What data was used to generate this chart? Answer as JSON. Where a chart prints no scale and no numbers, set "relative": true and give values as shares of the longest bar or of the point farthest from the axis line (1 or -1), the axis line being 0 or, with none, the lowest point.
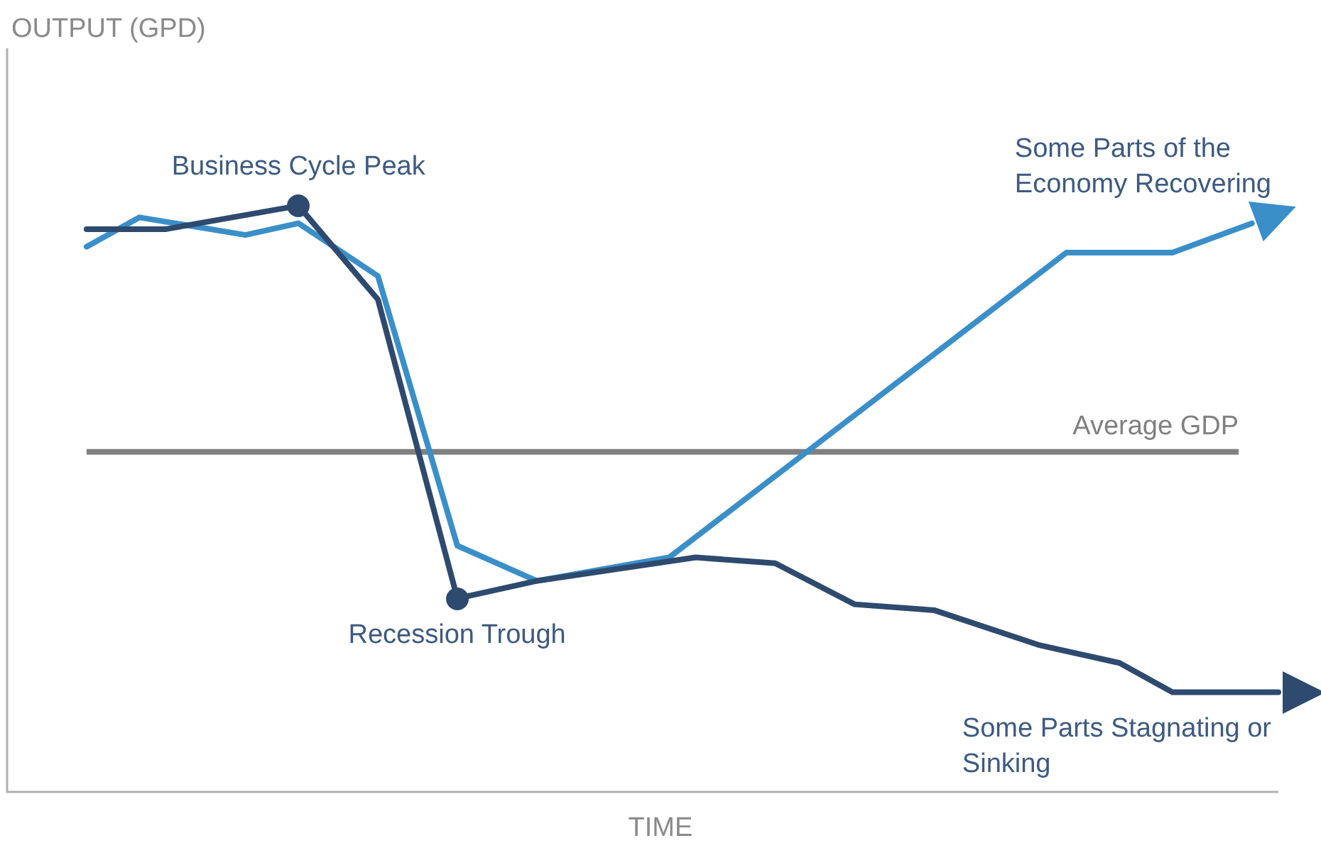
{
  "chart_data": {
    "type": "line",
    "relative": true,
    "xlabel": "TIME",
    "marker": "none",
    "line_style": "solid",
    "categories": [
      null,
      null,
      null,
      null,
      null,
      null,
      null,
      null,
      null,
      null,
      null,
      null,
      null,
      null,
      null,
      null,
      null,
      null,
      null,
      null,
      null,
      null,
      null,
      null,
      null,
      null,
      null,
      null,
      null,
      null,
      null,
      null,
      null,
      null,
      null,
      null,
      null,
      null,
      null,
      null,
      null,
      null,
      null,
      null,
      null,
      null,
      null,
      null,
      null
    ],
    "series": [
      {
        "color": "#2e4a6e",
        "values": [
          null,
          null,
          null,
          0.96,
          null,
          null,
          0.96,
          null,
          null,
          null,
          null,
          1,
          null,
          null,
          0.84,
          null,
          null,
          0.33,
          null,
          null,
          0.36,
          null,
          null,
          null,
          null,
          null,
          0.4,
          null,
          null,
          0.39,
          null,
          null,
          0.32,
          null,
          null,
          0.31,
          null,
          null,
          null,
          0.25,
          null,
          null,
          0.22,
          null,
          0.17,
          null,
          null,
          null,
          0.17
        ]
      },
      {
        "color": "#3a8fc9",
        "values": [
          null,
          null,
          null,
          0.93,
          null,
          0.98,
          null,
          null,
          null,
          0.95,
          null,
          0.97,
          null,
          null,
          0.88,
          null,
          null,
          0.42,
          null,
          null,
          0.36,
          null,
          null,
          null,
          null,
          0.4,
          null,
          null,
          null,
          null,
          null,
          null,
          null,
          null,
          null,
          null,
          null,
          null,
          null,
          null,
          0.92,
          null,
          null,
          null,
          0.92,
          null,
          null,
          0.97,
          null
        ]
      }
    ],
    "ref_lines": [
      {
        "axis": "y",
        "value": 0.58,
        "label": "Average GDP",
        "color": "#808080"
      }
    ],
    "annotations": [
      "OUTPUT (GPD)",
      {
        "text": "Business Cycle Peak",
        "y": 1
      },
      {
        "text": "Recession Trough",
        "y": 0.33
      },
      "Some Parts of the Economy Recovering",
      "Some Parts Stagnating or Sinking"
    ]
  }
}
